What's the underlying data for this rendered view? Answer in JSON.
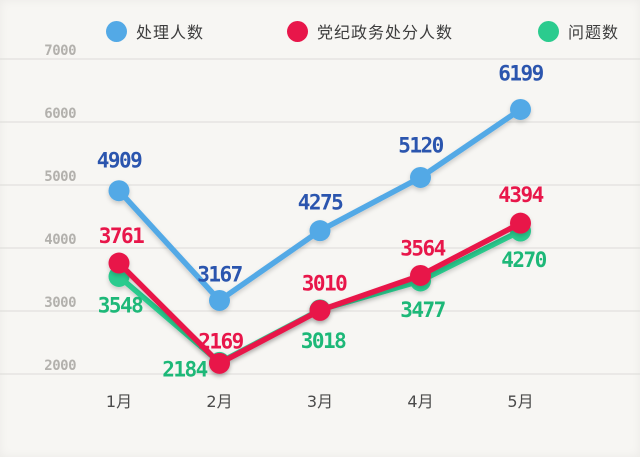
{
  "colors": {
    "background": "#f7f6f3",
    "grid": "#dcdbd8",
    "tick_text": "#b3b1ad",
    "category_text": "#4b4b4b"
  },
  "legend": {
    "items": [
      {
        "label": "处理人数",
        "color": "#53a9e6"
      },
      {
        "label": "党纪政务处分人数",
        "color": "#e8164a"
      },
      {
        "label": "问题数",
        "color": "#2bcb8e"
      }
    ]
  },
  "chart_data": {
    "type": "line",
    "title": "",
    "xlabel": "",
    "ylabel": "",
    "categories": [
      "1月",
      "2月",
      "3月",
      "4月",
      "5月"
    ],
    "series": [
      {
        "name": "处理人数",
        "color": "#53a9e6",
        "label_color": "#2b55ae",
        "values": [
          4909,
          3167,
          4275,
          5120,
          6199
        ],
        "label_offsets": [
          [
            0,
            -23
          ],
          [
            0,
            -19
          ],
          [
            0,
            -21
          ],
          [
            0,
            -25
          ],
          [
            0,
            -29
          ]
        ]
      },
      {
        "name": "党纪政务处分人数",
        "color": "#e8164a",
        "label_color": "#e8164a",
        "values": [
          3761,
          2169,
          3010,
          3564,
          4394
        ],
        "label_offsets": [
          [
            2,
            -20
          ],
          [
            1,
            -15
          ],
          [
            4,
            -20
          ],
          [
            2,
            -20
          ],
          [
            0,
            -21
          ]
        ]
      },
      {
        "name": "问题数",
        "color": "#2bcb8e",
        "label_color": "#1db878",
        "values": [
          3548,
          2184,
          3018,
          3477,
          4270
        ],
        "label_offsets": [
          [
            1,
            36
          ],
          [
            -35,
            14
          ],
          [
            3,
            38
          ],
          [
            2,
            36
          ],
          [
            3,
            36
          ]
        ]
      }
    ],
    "ylim": [
      2000,
      7000
    ],
    "yticks": [
      7000,
      6000,
      5000,
      4000,
      3000,
      2000
    ],
    "grid": true,
    "legend_position": "top"
  }
}
